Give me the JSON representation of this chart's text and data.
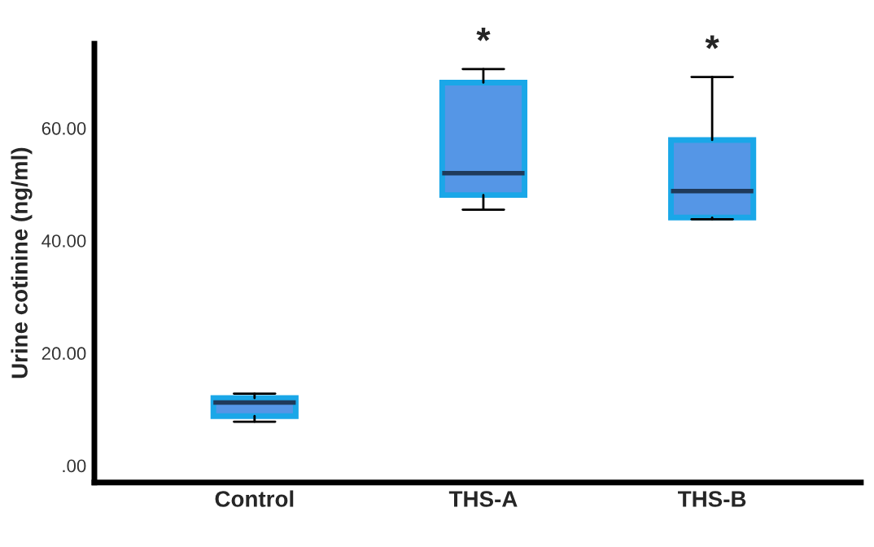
{
  "chart_data": {
    "type": "box",
    "ylabel": "Urine cotinine (ng/ml)",
    "categories": [
      "Control",
      "THS-A",
      "THS-B"
    ],
    "series": [
      {
        "color": "#5596e6",
        "boxes": [
          {
            "low": 7.8,
            "q1": 8.8,
            "median": 11.2,
            "q3": 12.0,
            "high": 12.8
          },
          {
            "low": 45.5,
            "q1": 48.1,
            "median": 52.0,
            "q3": 68.1,
            "high": 70.5
          },
          {
            "low": 43.8,
            "q1": 44.1,
            "median": 48.8,
            "q3": 57.9,
            "high": 69.1
          }
        ]
      }
    ],
    "ylim": [
      -3,
      75
    ],
    "yticks": [
      {
        "value": 0,
        "label": ".00"
      },
      {
        "value": 20,
        "label": "20.00"
      },
      {
        "value": 40,
        "label": "40.00"
      },
      {
        "value": 60,
        "label": "60.00"
      }
    ],
    "annotations": [
      "*",
      "*"
    ],
    "grid": false,
    "legend": false
  }
}
